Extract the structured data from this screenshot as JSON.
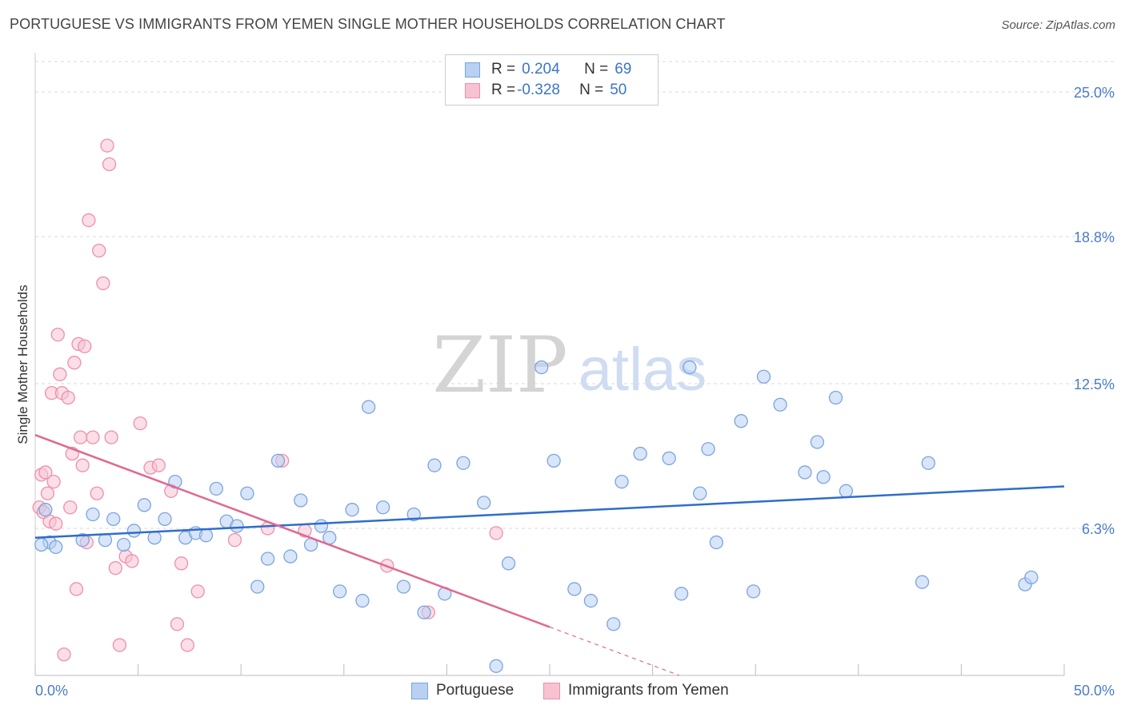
{
  "header": {
    "title": "PORTUGUESE VS IMMIGRANTS FROM YEMEN SINGLE MOTHER HOUSEHOLDS CORRELATION CHART",
    "source": "Source: ZipAtlas.com"
  },
  "watermark": {
    "zip": "ZIP",
    "atlas": "atlas"
  },
  "colors": {
    "blue_fill": "#b9d0f2",
    "blue_stroke": "#7aa5df",
    "blue_line": "#2e6dcb",
    "pink_fill": "#f7c2d1",
    "pink_stroke": "#ec90ad",
    "pink_line": "#e06892",
    "grid": "#d8d8d8",
    "tick_text": "#4a7cc9"
  },
  "legend": {
    "rows": [
      {
        "r_label": "R = ",
        "r_value": "0.204",
        "n_label": "N = ",
        "n_value": "69"
      },
      {
        "r_label": "R = ",
        "r_value": "-0.328",
        "n_label": "N = ",
        "n_value": "50"
      }
    ]
  },
  "bottom_legend": {
    "series1": "Portuguese",
    "series2": "Immigrants from Yemen"
  },
  "chart_data": {
    "type": "scatter",
    "title": "PORTUGUESE VS IMMIGRANTS FROM YEMEN SINGLE MOTHER HOUSEHOLDS CORRELATION CHART",
    "xlabel": "",
    "ylabel": "Single Mother Households",
    "xlim": [
      0,
      50
    ],
    "ylim": [
      0,
      26.3
    ],
    "x_tick_labels": [
      "0.0%",
      "50.0%"
    ],
    "y_ticks": [
      6.3,
      12.5,
      18.8,
      25.0
    ],
    "y_tick_labels": [
      "6.3%",
      "12.5%",
      "18.8%",
      "25.0%"
    ],
    "grid": true,
    "series": [
      {
        "name": "Portuguese",
        "r": 0.204,
        "n": 69,
        "trend": {
          "x0": 0,
          "y0": 5.9,
          "x1": 50,
          "y1": 8.1,
          "dashed_from": null
        },
        "points": [
          [
            0.5,
            7.1
          ],
          [
            0.7,
            5.7
          ],
          [
            1.0,
            5.5
          ],
          [
            2.3,
            5.8
          ],
          [
            2.8,
            6.9
          ],
          [
            3.4,
            5.8
          ],
          [
            3.8,
            6.7
          ],
          [
            4.3,
            5.6
          ],
          [
            4.8,
            6.2
          ],
          [
            5.3,
            7.3
          ],
          [
            5.8,
            5.9
          ],
          [
            6.3,
            6.7
          ],
          [
            6.8,
            8.3
          ],
          [
            7.3,
            5.9
          ],
          [
            7.8,
            6.1
          ],
          [
            8.3,
            6.0
          ],
          [
            8.8,
            8.0
          ],
          [
            9.3,
            6.6
          ],
          [
            9.8,
            6.4
          ],
          [
            10.3,
            7.8
          ],
          [
            10.8,
            3.8
          ],
          [
            11.3,
            5.0
          ],
          [
            11.8,
            9.2
          ],
          [
            12.4,
            5.1
          ],
          [
            12.9,
            7.5
          ],
          [
            13.4,
            5.6
          ],
          [
            13.9,
            6.4
          ],
          [
            14.3,
            5.9
          ],
          [
            14.8,
            3.6
          ],
          [
            15.4,
            7.1
          ],
          [
            15.9,
            3.2
          ],
          [
            16.2,
            11.5
          ],
          [
            16.9,
            7.2
          ],
          [
            17.9,
            3.8
          ],
          [
            18.4,
            6.9
          ],
          [
            18.9,
            2.7
          ],
          [
            19.4,
            9.0
          ],
          [
            19.9,
            3.5
          ],
          [
            20.8,
            9.1
          ],
          [
            21.8,
            7.4
          ],
          [
            22.4,
            0.4
          ],
          [
            23.0,
            4.8
          ],
          [
            24.6,
            13.2
          ],
          [
            25.2,
            9.2
          ],
          [
            26.2,
            3.7
          ],
          [
            27.0,
            3.2
          ],
          [
            28.1,
            2.2
          ],
          [
            28.5,
            8.3
          ],
          [
            29.4,
            9.5
          ],
          [
            30.8,
            9.3
          ],
          [
            31.4,
            3.5
          ],
          [
            31.8,
            13.2
          ],
          [
            32.3,
            7.8
          ],
          [
            32.7,
            9.7
          ],
          [
            33.1,
            5.7
          ],
          [
            34.3,
            10.9
          ],
          [
            34.9,
            3.6
          ],
          [
            35.4,
            12.8
          ],
          [
            36.2,
            11.6
          ],
          [
            37.4,
            8.7
          ],
          [
            38.0,
            10.0
          ],
          [
            38.3,
            8.5
          ],
          [
            38.9,
            11.9
          ],
          [
            39.4,
            7.9
          ],
          [
            43.1,
            4.0
          ],
          [
            43.4,
            9.1
          ],
          [
            48.1,
            3.9
          ],
          [
            48.4,
            4.2
          ],
          [
            0.3,
            5.6
          ]
        ]
      },
      {
        "name": "Immigrants from Yemen",
        "r": -0.328,
        "n": 50,
        "trend": {
          "x0": 0,
          "y0": 10.3,
          "x1": 31.3,
          "y1": 0,
          "dashed_from": 25.0
        },
        "points": [
          [
            0.2,
            7.2
          ],
          [
            0.3,
            8.6
          ],
          [
            0.4,
            7.0
          ],
          [
            0.5,
            8.7
          ],
          [
            0.6,
            7.8
          ],
          [
            0.7,
            6.6
          ],
          [
            0.8,
            12.1
          ],
          [
            0.9,
            8.3
          ],
          [
            1.0,
            6.5
          ],
          [
            1.1,
            14.6
          ],
          [
            1.2,
            12.9
          ],
          [
            1.3,
            12.1
          ],
          [
            1.4,
            0.9
          ],
          [
            1.6,
            11.9
          ],
          [
            1.7,
            7.2
          ],
          [
            1.8,
            9.5
          ],
          [
            1.9,
            13.4
          ],
          [
            2.0,
            3.7
          ],
          [
            2.1,
            14.2
          ],
          [
            2.2,
            10.2
          ],
          [
            2.3,
            9.0
          ],
          [
            2.4,
            14.1
          ],
          [
            2.5,
            5.7
          ],
          [
            2.6,
            19.5
          ],
          [
            2.8,
            10.2
          ],
          [
            3.0,
            7.8
          ],
          [
            3.1,
            18.2
          ],
          [
            3.3,
            16.8
          ],
          [
            3.5,
            22.7
          ],
          [
            3.6,
            21.9
          ],
          [
            3.7,
            10.2
          ],
          [
            3.9,
            4.6
          ],
          [
            4.1,
            1.3
          ],
          [
            4.4,
            5.1
          ],
          [
            4.7,
            4.9
          ],
          [
            5.1,
            10.8
          ],
          [
            5.6,
            8.9
          ],
          [
            6.0,
            9.0
          ],
          [
            6.6,
            7.9
          ],
          [
            6.9,
            2.2
          ],
          [
            7.1,
            4.8
          ],
          [
            7.4,
            1.3
          ],
          [
            7.9,
            3.6
          ],
          [
            9.7,
            5.8
          ],
          [
            11.3,
            6.3
          ],
          [
            12.0,
            9.2
          ],
          [
            13.1,
            6.2
          ],
          [
            17.1,
            4.7
          ],
          [
            19.1,
            2.7
          ],
          [
            22.4,
            6.1
          ]
        ]
      }
    ]
  }
}
